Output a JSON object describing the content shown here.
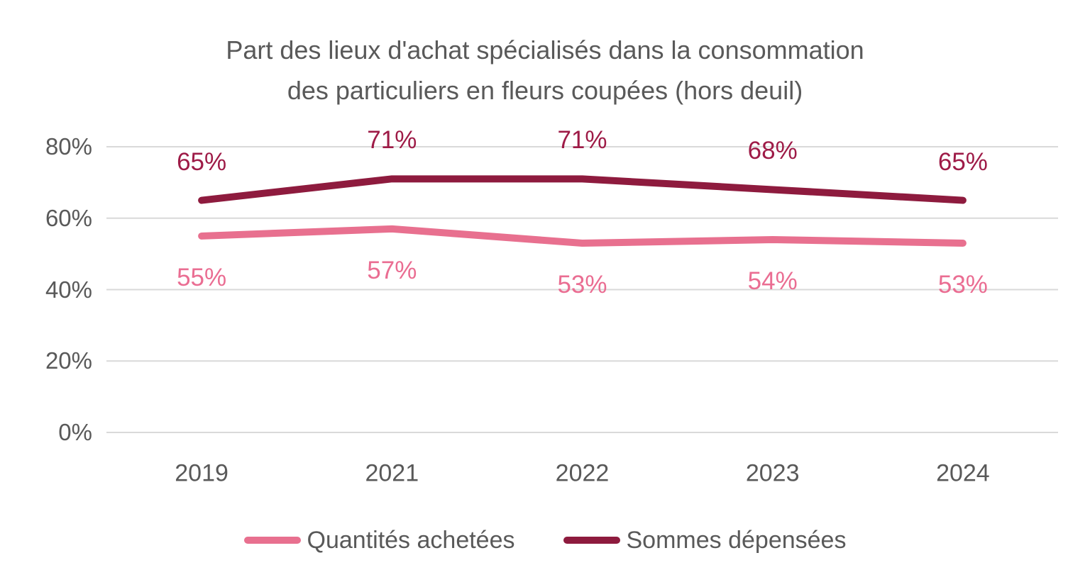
{
  "title": {
    "line1": "Part des lieux d'achat spécialisés dans la consommation",
    "line2": "des particuliers en fleurs coupées (hors deuil)"
  },
  "chart_data": {
    "type": "line",
    "title": "Part des lieux d'achat spécialisés dans la consommation des particuliers en fleurs coupées (hors deuil)",
    "categories": [
      "2019",
      "2021",
      "2022",
      "2023",
      "2024"
    ],
    "series": [
      {
        "name": "Quantités achetées",
        "values": [
          55,
          57,
          53,
          54,
          53
        ],
        "color": "#E8708F",
        "label_color": "#EA6D92",
        "label_side": "below"
      },
      {
        "name": "Sommes dépensées",
        "values": [
          65,
          71,
          71,
          68,
          65
        ],
        "color": "#8E1B3E",
        "label_color": "#9E1B47",
        "label_side": "above"
      }
    ],
    "y_ticks": [
      0,
      20,
      40,
      60,
      80
    ],
    "y_tick_format": "{v}%",
    "data_label_format": "{v}%",
    "ylim": [
      0,
      80
    ],
    "xlabel": "",
    "ylabel": "",
    "grid": "horizontal",
    "legend_position": "bottom",
    "data_labels": true
  },
  "colors": {
    "text": "#595959",
    "gridline": "#D9D9D9",
    "background": "#FFFFFF"
  }
}
